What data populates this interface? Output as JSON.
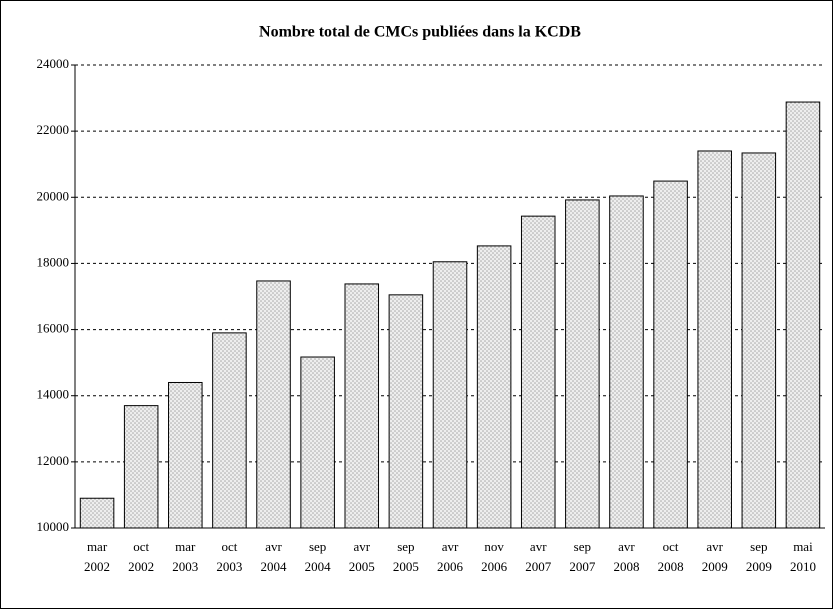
{
  "chart_data": {
    "type": "bar",
    "title": "Nombre total de CMCs publiées dans la KCDB",
    "categories": [
      [
        "mar",
        "2002"
      ],
      [
        "oct",
        "2002"
      ],
      [
        "mar",
        "2003"
      ],
      [
        "oct",
        "2003"
      ],
      [
        "avr",
        "2004"
      ],
      [
        "sep",
        "2004"
      ],
      [
        "avr",
        "2005"
      ],
      [
        "sep",
        "2005"
      ],
      [
        "avr",
        "2006"
      ],
      [
        "nov",
        "2006"
      ],
      [
        "avr",
        "2007"
      ],
      [
        "sep",
        "2007"
      ],
      [
        "avr",
        "2008"
      ],
      [
        "oct",
        "2008"
      ],
      [
        "avr",
        "2009"
      ],
      [
        "sep",
        "2009"
      ],
      [
        "mai",
        "2010"
      ]
    ],
    "values": [
      10900,
      13700,
      14400,
      15900,
      17470,
      15170,
      17380,
      17050,
      18050,
      18530,
      19430,
      19920,
      20040,
      20490,
      21400,
      21340,
      22880
    ],
    "color": "#a8a8a8",
    "ylim": [
      10000,
      24000
    ],
    "yticks": [
      10000,
      12000,
      14000,
      16000,
      18000,
      20000,
      22000,
      24000
    ],
    "grid": true
  }
}
